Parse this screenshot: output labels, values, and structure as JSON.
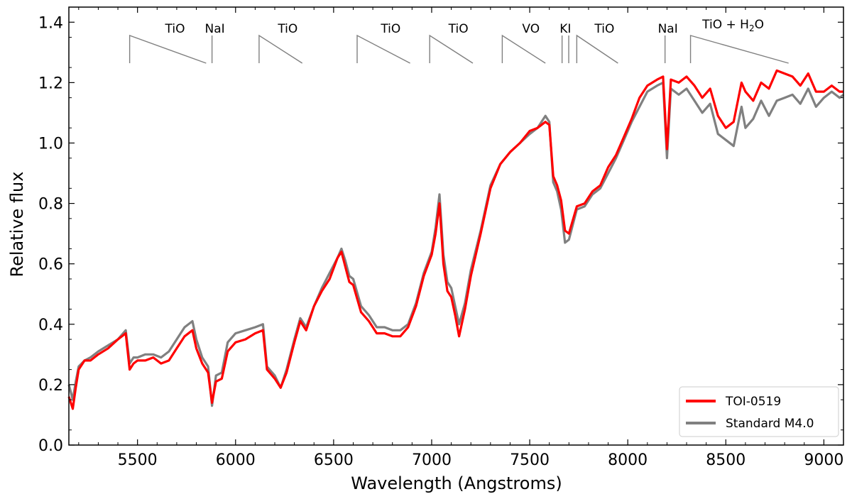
{
  "chart_data": {
    "type": "line",
    "xlabel": "Wavelength (Angstroms)",
    "ylabel": "Relative flux",
    "xlim": [
      5150,
      9100
    ],
    "ylim": [
      0.0,
      1.45
    ],
    "xticks": [
      5500,
      6000,
      6500,
      7000,
      7500,
      8000,
      8500,
      9000
    ],
    "yticks": [
      0.0,
      0.2,
      0.4,
      0.6,
      0.8,
      1.0,
      1.2,
      1.4
    ],
    "grid": false,
    "legend_position": "bottom-right",
    "colors": {
      "TOI-0519": "#ff0000",
      "Standard M4.0": "#808080",
      "annotation": "#808080"
    },
    "series": [
      {
        "name": "TOI-0519",
        "x": [
          5150,
          5170,
          5185,
          5200,
          5230,
          5260,
          5300,
          5350,
          5400,
          5440,
          5460,
          5480,
          5500,
          5540,
          5580,
          5620,
          5660,
          5700,
          5740,
          5780,
          5800,
          5830,
          5860,
          5880,
          5900,
          5930,
          5960,
          6000,
          6050,
          6100,
          6140,
          6160,
          6200,
          6230,
          6260,
          6300,
          6330,
          6360,
          6400,
          6440,
          6480,
          6520,
          6540,
          6560,
          6580,
          6600,
          6640,
          6680,
          6720,
          6760,
          6800,
          6840,
          6880,
          6920,
          6960,
          7000,
          7020,
          7040,
          7060,
          7080,
          7100,
          7120,
          7140,
          7170,
          7200,
          7250,
          7300,
          7350,
          7400,
          7450,
          7500,
          7540,
          7580,
          7600,
          7620,
          7640,
          7660,
          7680,
          7700,
          7740,
          7780,
          7820,
          7860,
          7900,
          7940,
          7980,
          8020,
          8060,
          8100,
          8150,
          8180,
          8200,
          8220,
          8260,
          8300,
          8340,
          8380,
          8420,
          8460,
          8500,
          8540,
          8580,
          8600,
          8640,
          8680,
          8720,
          8760,
          8800,
          8840,
          8880,
          8920,
          8960,
          9000,
          9040,
          9080,
          9100
        ],
        "y": [
          0.16,
          0.12,
          0.19,
          0.25,
          0.28,
          0.28,
          0.3,
          0.32,
          0.35,
          0.37,
          0.25,
          0.27,
          0.28,
          0.28,
          0.29,
          0.27,
          0.28,
          0.32,
          0.36,
          0.38,
          0.32,
          0.27,
          0.24,
          0.14,
          0.21,
          0.22,
          0.31,
          0.34,
          0.35,
          0.37,
          0.38,
          0.25,
          0.22,
          0.19,
          0.24,
          0.34,
          0.41,
          0.38,
          0.46,
          0.51,
          0.55,
          0.62,
          0.64,
          0.59,
          0.54,
          0.53,
          0.44,
          0.41,
          0.37,
          0.37,
          0.36,
          0.36,
          0.39,
          0.46,
          0.56,
          0.63,
          0.7,
          0.8,
          0.6,
          0.51,
          0.49,
          0.43,
          0.36,
          0.45,
          0.56,
          0.7,
          0.85,
          0.93,
          0.97,
          1.0,
          1.04,
          1.05,
          1.07,
          1.06,
          0.89,
          0.86,
          0.81,
          0.71,
          0.7,
          0.79,
          0.8,
          0.84,
          0.86,
          0.92,
          0.96,
          1.02,
          1.08,
          1.15,
          1.19,
          1.21,
          1.22,
          0.98,
          1.21,
          1.2,
          1.22,
          1.19,
          1.15,
          1.18,
          1.09,
          1.05,
          1.07,
          1.2,
          1.17,
          1.14,
          1.2,
          1.18,
          1.24,
          1.23,
          1.22,
          1.19,
          1.23,
          1.17,
          1.17,
          1.19,
          1.17,
          1.17
        ],
        "color": "#ff0000"
      },
      {
        "name": "Standard M4.0",
        "x": [
          5150,
          5170,
          5185,
          5200,
          5230,
          5260,
          5300,
          5350,
          5400,
          5440,
          5460,
          5480,
          5500,
          5540,
          5580,
          5620,
          5660,
          5700,
          5740,
          5780,
          5800,
          5830,
          5860,
          5880,
          5900,
          5930,
          5960,
          6000,
          6050,
          6100,
          6140,
          6160,
          6200,
          6230,
          6260,
          6300,
          6330,
          6360,
          6400,
          6440,
          6480,
          6520,
          6540,
          6560,
          6580,
          6600,
          6640,
          6680,
          6720,
          6760,
          6800,
          6840,
          6880,
          6920,
          6960,
          7000,
          7020,
          7040,
          7060,
          7080,
          7100,
          7120,
          7140,
          7170,
          7200,
          7250,
          7300,
          7350,
          7400,
          7450,
          7500,
          7540,
          7580,
          7600,
          7620,
          7640,
          7660,
          7680,
          7700,
          7740,
          7780,
          7820,
          7860,
          7900,
          7940,
          7980,
          8020,
          8060,
          8100,
          8150,
          8180,
          8200,
          8220,
          8260,
          8300,
          8340,
          8380,
          8420,
          8460,
          8500,
          8540,
          8580,
          8600,
          8640,
          8680,
          8720,
          8760,
          8800,
          8840,
          8880,
          8920,
          8960,
          9000,
          9040,
          9080,
          9100
        ],
        "y": [
          0.2,
          0.15,
          0.21,
          0.26,
          0.28,
          0.29,
          0.31,
          0.33,
          0.35,
          0.38,
          0.27,
          0.29,
          0.29,
          0.3,
          0.3,
          0.29,
          0.31,
          0.35,
          0.39,
          0.41,
          0.35,
          0.29,
          0.26,
          0.13,
          0.23,
          0.24,
          0.34,
          0.37,
          0.38,
          0.39,
          0.4,
          0.26,
          0.23,
          0.19,
          0.25,
          0.35,
          0.42,
          0.39,
          0.46,
          0.52,
          0.57,
          0.62,
          0.65,
          0.61,
          0.56,
          0.55,
          0.46,
          0.43,
          0.39,
          0.39,
          0.38,
          0.38,
          0.4,
          0.47,
          0.57,
          0.64,
          0.72,
          0.83,
          0.63,
          0.54,
          0.52,
          0.46,
          0.4,
          0.47,
          0.58,
          0.71,
          0.86,
          0.93,
          0.97,
          1.0,
          1.03,
          1.05,
          1.09,
          1.07,
          0.87,
          0.84,
          0.78,
          0.67,
          0.68,
          0.78,
          0.79,
          0.83,
          0.85,
          0.9,
          0.95,
          1.01,
          1.07,
          1.12,
          1.17,
          1.19,
          1.2,
          0.95,
          1.18,
          1.16,
          1.18,
          1.14,
          1.1,
          1.13,
          1.03,
          1.01,
          0.99,
          1.12,
          1.05,
          1.08,
          1.14,
          1.09,
          1.14,
          1.15,
          1.16,
          1.13,
          1.18,
          1.12,
          1.15,
          1.17,
          1.15,
          1.16
        ],
        "color": "#808080"
      }
    ],
    "annotations": [
      {
        "label": "TiO",
        "type": "band",
        "start": 5460,
        "end": 5850
      },
      {
        "label": "NaI",
        "type": "line",
        "at": 5880
      },
      {
        "label": "TiO",
        "type": "band",
        "start": 6120,
        "end": 6340
      },
      {
        "label": "TiO",
        "type": "band",
        "start": 6620,
        "end": 6890
      },
      {
        "label": "TiO",
        "type": "band",
        "start": 6990,
        "end": 7210
      },
      {
        "label": "VO",
        "type": "band",
        "start": 7360,
        "end": 7580
      },
      {
        "label": "KI",
        "type": "double",
        "at": [
          7665,
          7699
        ]
      },
      {
        "label": "TiO",
        "type": "band",
        "start": 7740,
        "end": 7950
      },
      {
        "label": "NaI",
        "type": "line",
        "at": 8190
      },
      {
        "label": "TiO + H",
        "sub": "2",
        "suffix": "O",
        "type": "band",
        "start": 8320,
        "end": 8820
      }
    ]
  }
}
